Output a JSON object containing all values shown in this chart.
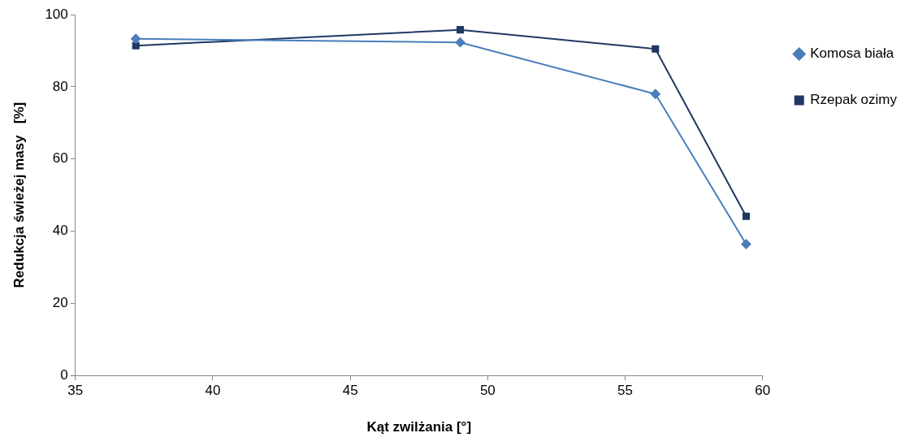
{
  "chart_data": {
    "type": "line",
    "xlabel": "Kąt zwilżania [°]",
    "ylabel": "Redukcja świeżej masy   [%]",
    "xlim": [
      35,
      60
    ],
    "xticks": [
      35,
      40,
      45,
      50,
      55,
      60
    ],
    "ylim": [
      0,
      100
    ],
    "yticks": [
      0,
      20,
      40,
      60,
      80,
      100
    ],
    "grid": false,
    "legend": "top right",
    "line_style": "solid",
    "series": [
      {
        "name": "Komosa biała",
        "color": "#4a7ebb",
        "marker": "diamond",
        "x": [
          37.2,
          49.0,
          56.1,
          59.4
        ],
        "values": [
          93.3,
          92.3,
          78.0,
          36.4
        ]
      },
      {
        "name": "Rzepak ozimy",
        "color": "#1f3864",
        "marker": "square",
        "x": [
          37.2,
          49.0,
          56.1,
          59.4
        ],
        "values": [
          91.4,
          95.8,
          90.5,
          44.1
        ]
      }
    ]
  }
}
